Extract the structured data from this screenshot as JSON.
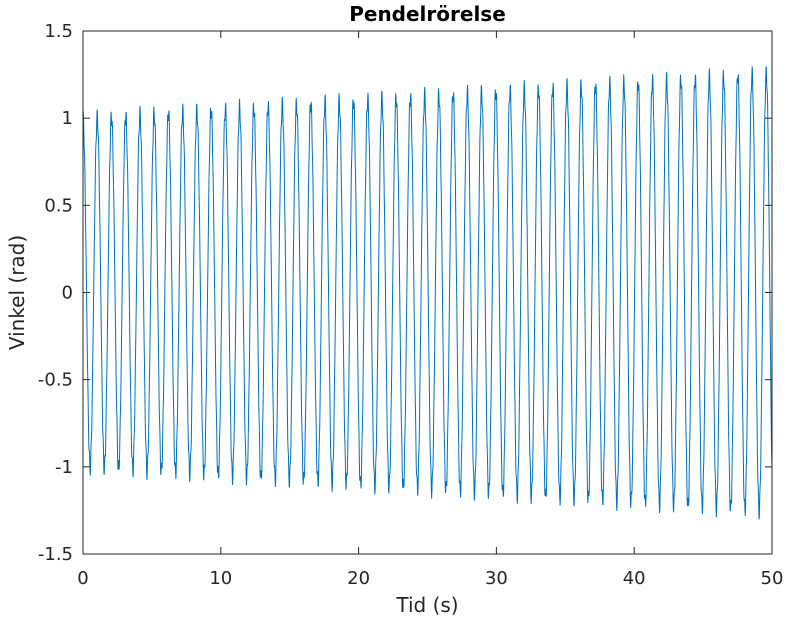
{
  "chart_data": {
    "type": "line",
    "title": "Pendelrörelse",
    "xlabel": "Tid (s)",
    "ylabel": "Vinkel (rad)",
    "xlim": [
      0,
      50
    ],
    "ylim": [
      -1.5,
      1.5
    ],
    "xticks": [
      0,
      10,
      20,
      30,
      40,
      50
    ],
    "xtick_labels": [
      "0",
      "10",
      "20",
      "30",
      "40",
      "50"
    ],
    "yticks": [
      -1.5,
      -1,
      -0.5,
      0,
      0.5,
      1,
      1.5
    ],
    "ytick_labels": [
      "-1.5",
      "-1",
      "-0.5",
      "0",
      "0.5",
      "1",
      "1.5"
    ],
    "grid": false,
    "box": true,
    "line_color": "#0072BD",
    "series": [
      {
        "amplitude_start": 1.0,
        "amplitude_end": 1.26,
        "period": 1.033,
        "cycles": 48.4,
        "ripple_amplitude": 0.05,
        "ripple_frequency": 9.3,
        "samples": 2500
      }
    ]
  }
}
